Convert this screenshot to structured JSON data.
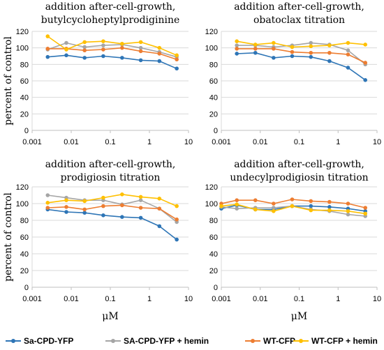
{
  "figure": {
    "legend": [
      {
        "label": "Sa-CPD-YFP",
        "color": "#2E75B6"
      },
      {
        "label": "SA-CPD-YFP + hemin",
        "color": "#A5A5A5"
      },
      {
        "label": "WT-CFP",
        "color": "#ED7D31"
      },
      {
        "label": "WT-CFP + hemin",
        "color": "#FFC000"
      }
    ]
  },
  "chart_data": [
    {
      "type": "line",
      "title_line1": "addition after-cell-growth,",
      "title_line2": "butylcycloheptylprodiginine",
      "ylabel": "percent of control",
      "xlabel": "",
      "x_scale": "log",
      "xlim": [
        0.001,
        10
      ],
      "ylim": [
        0,
        120
      ],
      "x_ticks": [
        "0.001",
        "0.01",
        "0.1",
        "1",
        "10"
      ],
      "y_ticks": [
        "0",
        "20",
        "40",
        "60",
        "80",
        "100",
        "120"
      ],
      "grid": "horizontal",
      "series": [
        {
          "name": "Sa-CPD-YFP",
          "color": "#2E75B6",
          "x": [
            0.0025,
            0.0075,
            0.022,
            0.066,
            0.2,
            0.6,
            1.8,
            5.0
          ],
          "y": [
            89,
            91,
            88,
            90,
            88,
            85,
            84,
            75
          ]
        },
        {
          "name": "SA-CPD-YFP + hemin",
          "color": "#A5A5A5",
          "x": [
            0.0025,
            0.0075,
            0.022,
            0.066,
            0.2,
            0.6,
            1.8,
            5.0
          ],
          "y": [
            98,
            106,
            101,
            103,
            104,
            100,
            95,
            89
          ]
        },
        {
          "name": "WT-CFP",
          "color": "#ED7D31",
          "x": [
            0.0025,
            0.0075,
            0.022,
            0.066,
            0.2,
            0.6,
            1.8,
            5.0
          ],
          "y": [
            99,
            99,
            97,
            98,
            100,
            96,
            93,
            86
          ]
        },
        {
          "name": "WT-CFP + hemin",
          "color": "#FFC000",
          "x": [
            0.0025,
            0.0075,
            0.022,
            0.066,
            0.2,
            0.6,
            1.8,
            5.0
          ],
          "y": [
            114,
            98,
            107,
            108,
            105,
            107,
            100,
            91
          ]
        }
      ]
    },
    {
      "type": "line",
      "title_line1": "addition after-cell-growth,",
      "title_line2": "obatoclax titration",
      "ylabel": "",
      "xlabel": "",
      "x_scale": "log",
      "xlim": [
        0.001,
        10
      ],
      "ylim": [
        0,
        120
      ],
      "x_ticks": [
        "0.001",
        "0.01",
        "0.1",
        "1",
        "10"
      ],
      "y_ticks": [
        "0",
        "20",
        "40",
        "60",
        "80",
        "100",
        "120"
      ],
      "grid": "horizontal",
      "series": [
        {
          "name": "Sa-CPD-YFP",
          "color": "#2E75B6",
          "x": [
            0.0025,
            0.0075,
            0.022,
            0.066,
            0.2,
            0.6,
            1.8,
            5.0
          ],
          "y": [
            93,
            94,
            88,
            90,
            89,
            84,
            76,
            61
          ]
        },
        {
          "name": "SA-CPD-YFP + hemin",
          "color": "#A5A5A5",
          "x": [
            0.0025,
            0.0075,
            0.022,
            0.066,
            0.2,
            0.6,
            1.8,
            5.0
          ],
          "y": [
            103,
            103,
            101,
            103,
            106,
            104,
            97,
            80
          ]
        },
        {
          "name": "WT-CFP",
          "color": "#ED7D31",
          "x": [
            0.0025,
            0.0075,
            0.022,
            0.066,
            0.2,
            0.6,
            1.8,
            5.0
          ],
          "y": [
            99,
            99,
            99,
            95,
            94,
            94,
            92,
            82
          ]
        },
        {
          "name": "WT-CFP + hemin",
          "color": "#FFC000",
          "x": [
            0.0025,
            0.0075,
            0.022,
            0.066,
            0.2,
            0.6,
            1.8,
            5.0
          ],
          "y": [
            108,
            104,
            106,
            101,
            102,
            103,
            106,
            104
          ]
        }
      ]
    },
    {
      "type": "line",
      "title_line1": "addition after-cell-growth,",
      "title_line2": "prodigiosin titration",
      "ylabel": "percent of control",
      "xlabel": "μM",
      "x_scale": "log",
      "xlim": [
        0.001,
        10
      ],
      "ylim": [
        0,
        120
      ],
      "x_ticks": [
        "0.001",
        "0.01",
        "0.1",
        "1",
        "10"
      ],
      "y_ticks": [
        "0",
        "20",
        "40",
        "60",
        "80",
        "100",
        "120"
      ],
      "grid": "horizontal",
      "series": [
        {
          "name": "Sa-CPD-YFP",
          "color": "#2E75B6",
          "x": [
            0.0025,
            0.0075,
            0.022,
            0.066,
            0.2,
            0.6,
            1.8,
            5.0
          ],
          "y": [
            93,
            90,
            89,
            86,
            84,
            83,
            73,
            57
          ]
        },
        {
          "name": "SA-CPD-YFP + hemin",
          "color": "#A5A5A5",
          "x": [
            0.0025,
            0.0075,
            0.022,
            0.066,
            0.2,
            0.6,
            1.8,
            5.0
          ],
          "y": [
            110,
            107,
            104,
            104,
            99,
            104,
            94,
            78
          ]
        },
        {
          "name": "WT-CFP",
          "color": "#ED7D31",
          "x": [
            0.0025,
            0.0075,
            0.022,
            0.066,
            0.2,
            0.6,
            1.8,
            5.0
          ],
          "y": [
            95,
            96,
            93,
            97,
            98,
            95,
            94,
            81
          ]
        },
        {
          "name": "WT-CFP + hemin",
          "color": "#FFC000",
          "x": [
            0.0025,
            0.0075,
            0.022,
            0.066,
            0.2,
            0.6,
            1.8,
            5.0
          ],
          "y": [
            101,
            104,
            103,
            107,
            111,
            108,
            106,
            97
          ]
        }
      ]
    },
    {
      "type": "line",
      "title_line1": "addition after-cell-growth,",
      "title_line2": "undecylprodigiosin titration",
      "ylabel": "",
      "xlabel": "μM",
      "x_scale": "log",
      "xlim": [
        0.001,
        10
      ],
      "ylim": [
        0,
        120
      ],
      "x_ticks": [
        "0.001",
        "0.01",
        "0.1",
        "1",
        "10"
      ],
      "y_ticks": [
        "0",
        "20",
        "40",
        "60",
        "80",
        "100",
        "120"
      ],
      "grid": "horizontal",
      "series": [
        {
          "name": "Sa-CPD-YFP",
          "color": "#2E75B6",
          "x": [
            0.001,
            0.0025,
            0.0075,
            0.022,
            0.066,
            0.2,
            0.6,
            1.8,
            5.0
          ],
          "y": [
            94,
            98,
            93,
            93,
            97,
            97,
            96,
            94,
            91
          ]
        },
        {
          "name": "SA-CPD-YFP + hemin",
          "color": "#A5A5A5",
          "x": [
            0.001,
            0.0025,
            0.0075,
            0.022,
            0.066,
            0.2,
            0.6,
            1.8,
            5.0
          ],
          "y": [
            96,
            94,
            95,
            95,
            97,
            93,
            91,
            87,
            85
          ]
        },
        {
          "name": "WT-CFP",
          "color": "#ED7D31",
          "x": [
            0.001,
            0.0025,
            0.0075,
            0.022,
            0.066,
            0.2,
            0.6,
            1.8,
            5.0
          ],
          "y": [
            100,
            104,
            104,
            100,
            105,
            103,
            102,
            100,
            95
          ]
        },
        {
          "name": "WT-CFP + hemin",
          "color": "#FFC000",
          "x": [
            0.001,
            0.0025,
            0.0075,
            0.022,
            0.066,
            0.2,
            0.6,
            1.8,
            5.0
          ],
          "y": [
            97,
            99,
            93,
            91,
            97,
            92,
            92,
            91,
            88
          ]
        }
      ]
    }
  ]
}
